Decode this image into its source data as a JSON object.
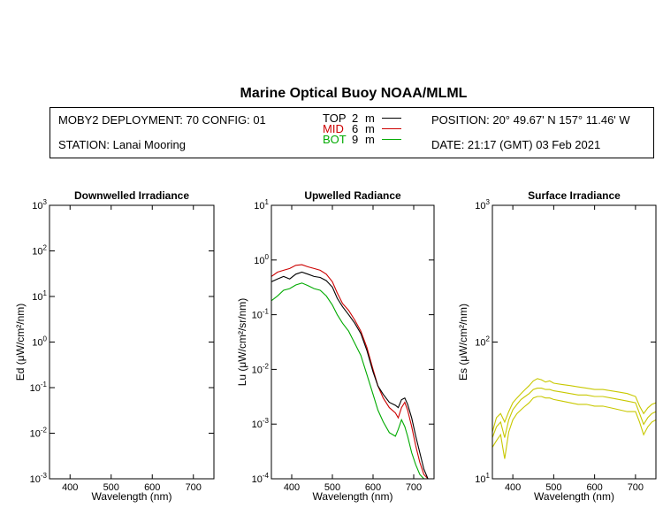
{
  "title": "Marine Optical Buoy NOAA/MLML",
  "info": {
    "deployment": "MOBY2 DEPLOYMENT: 70 CONFIG: 01",
    "station": "STATION: Lanai Mooring",
    "position": "POSITION: 20° 49.67' N   157° 11.46' W",
    "date": "DATE: 21:17 (GMT) 03 Feb 2021",
    "legend": [
      {
        "name": "TOP",
        "depth": "2",
        "unit": "m",
        "color": "#000000"
      },
      {
        "name": "MID",
        "depth": "6",
        "unit": "m",
        "color": "#cc0000"
      },
      {
        "name": "BOT",
        "depth": "9",
        "unit": "m",
        "color": "#00aa00"
      }
    ]
  },
  "chart_data": [
    {
      "type": "line",
      "title": "Downwelled Irradiance",
      "xlabel": "Wavelength (nm)",
      "ylabel": "Ed  (μW/cm²/nm)",
      "xlim": [
        350,
        750
      ],
      "ylim": [
        0.001,
        1000
      ],
      "yscale": "log",
      "xticks": [
        400,
        500,
        600,
        700
      ],
      "yticks": [
        {
          "base": "10",
          "exp": "-3"
        },
        {
          "base": "10",
          "exp": "-2"
        },
        {
          "base": "10",
          "exp": "-1"
        },
        {
          "base": "10",
          "exp": "0"
        },
        {
          "base": "10",
          "exp": "1"
        },
        {
          "base": "10",
          "exp": "2"
        },
        {
          "base": "10",
          "exp": "3"
        }
      ],
      "series": []
    },
    {
      "type": "line",
      "title": "Upwelled Radiance",
      "xlabel": "Wavelength (nm)",
      "ylabel": "Lu  (μW/cm²/sr/nm)",
      "xlim": [
        350,
        750
      ],
      "ylim": [
        0.0001,
        10
      ],
      "yscale": "log",
      "xticks": [
        400,
        500,
        600,
        700
      ],
      "yticks": [
        {
          "base": "10",
          "exp": "-4"
        },
        {
          "base": "10",
          "exp": "-3"
        },
        {
          "base": "10",
          "exp": "-2"
        },
        {
          "base": "10",
          "exp": "-1"
        },
        {
          "base": "10",
          "exp": "0"
        },
        {
          "base": "10",
          "exp": "1"
        }
      ],
      "series": [
        {
          "color": "#cc0000",
          "x": [
            350,
            365,
            380,
            395,
            410,
            425,
            440,
            455,
            470,
            485,
            500,
            512,
            525,
            540,
            555,
            570,
            585,
            600,
            612,
            625,
            640,
            655,
            662,
            670,
            678,
            685,
            695,
            705,
            715,
            725,
            735
          ],
          "y": [
            0.5,
            0.6,
            0.65,
            0.7,
            0.8,
            0.82,
            0.75,
            0.7,
            0.65,
            0.55,
            0.4,
            0.25,
            0.16,
            0.12,
            0.08,
            0.05,
            0.025,
            0.01,
            0.005,
            0.003,
            0.002,
            0.0016,
            0.0013,
            0.002,
            0.0025,
            0.0018,
            0.0009,
            0.0004,
            0.0002,
            0.00012,
            0.0001
          ]
        },
        {
          "color": "#000000",
          "x": [
            350,
            365,
            380,
            395,
            410,
            425,
            440,
            455,
            470,
            485,
            500,
            512,
            525,
            540,
            555,
            570,
            585,
            600,
            612,
            625,
            640,
            655,
            662,
            670,
            678,
            685,
            695,
            705,
            715,
            725,
            735
          ],
          "y": [
            0.4,
            0.45,
            0.5,
            0.45,
            0.55,
            0.6,
            0.55,
            0.5,
            0.48,
            0.42,
            0.32,
            0.2,
            0.14,
            0.1,
            0.07,
            0.045,
            0.022,
            0.009,
            0.005,
            0.0035,
            0.0025,
            0.0022,
            0.002,
            0.0028,
            0.003,
            0.0023,
            0.0013,
            0.0006,
            0.0003,
            0.00015,
            0.0001
          ]
        },
        {
          "color": "#00aa00",
          "x": [
            350,
            365,
            380,
            395,
            410,
            425,
            440,
            455,
            470,
            485,
            500,
            512,
            525,
            540,
            555,
            570,
            585,
            600,
            612,
            625,
            640,
            655,
            662,
            670,
            678,
            685,
            695,
            705,
            715,
            725,
            735
          ],
          "y": [
            0.18,
            0.22,
            0.28,
            0.3,
            0.35,
            0.38,
            0.34,
            0.3,
            0.28,
            0.22,
            0.15,
            0.1,
            0.07,
            0.05,
            0.03,
            0.018,
            0.008,
            0.0035,
            0.0018,
            0.0011,
            0.0007,
            0.0006,
            0.0008,
            0.0012,
            0.0009,
            0.0006,
            0.0003,
            0.00018,
            0.00012,
            0.0001,
            0.0001
          ]
        }
      ]
    },
    {
      "type": "line",
      "title": "Surface Irradiance",
      "xlabel": "Wavelength (nm)",
      "ylabel": "Es  (μW/cm²/nm)",
      "xlim": [
        350,
        750
      ],
      "ylim": [
        10,
        1000
      ],
      "yscale": "log",
      "xticks": [
        400,
        500,
        600,
        700
      ],
      "yticks": [
        {
          "base": "10",
          "exp": "1"
        },
        {
          "base": "10",
          "exp": "2"
        },
        {
          "base": "10",
          "exp": "3"
        }
      ],
      "series": [
        {
          "color": "#c8c800",
          "x": [
            350,
            360,
            370,
            380,
            390,
            400,
            410,
            420,
            430,
            440,
            450,
            460,
            470,
            480,
            490,
            500,
            520,
            540,
            560,
            580,
            600,
            620,
            640,
            660,
            680,
            700,
            710,
            720,
            730,
            740,
            750
          ],
          "y": [
            22,
            28,
            30,
            26,
            31,
            36,
            39,
            42,
            45,
            48,
            52,
            54,
            53,
            51,
            52,
            50,
            49,
            48,
            47,
            46,
            45,
            45,
            44,
            43,
            42,
            40,
            34,
            30,
            33,
            35,
            36
          ]
        },
        {
          "color": "#c8c800",
          "x": [
            350,
            360,
            370,
            380,
            390,
            400,
            410,
            420,
            430,
            440,
            450,
            460,
            470,
            480,
            490,
            500,
            520,
            540,
            560,
            580,
            600,
            620,
            640,
            660,
            680,
            700,
            710,
            720,
            730,
            740,
            750
          ],
          "y": [
            20,
            24,
            26,
            20,
            27,
            32,
            35,
            38,
            40,
            42,
            45,
            46,
            46,
            45,
            45,
            44,
            43,
            42,
            41,
            41,
            40,
            40,
            39,
            38,
            37,
            36,
            30,
            25,
            28,
            30,
            31
          ]
        },
        {
          "color": "#c8c800",
          "x": [
            350,
            360,
            370,
            380,
            390,
            400,
            410,
            420,
            430,
            440,
            450,
            460,
            470,
            480,
            490,
            500,
            520,
            540,
            560,
            580,
            600,
            620,
            640,
            660,
            680,
            700,
            710,
            720,
            730,
            740,
            750
          ],
          "y": [
            17,
            19,
            21,
            14,
            22,
            27,
            30,
            32,
            34,
            36,
            39,
            40,
            40,
            39,
            39,
            38,
            37,
            36,
            35,
            35,
            34,
            34,
            33,
            32,
            31,
            31,
            26,
            21,
            24,
            26,
            27
          ]
        }
      ]
    }
  ]
}
